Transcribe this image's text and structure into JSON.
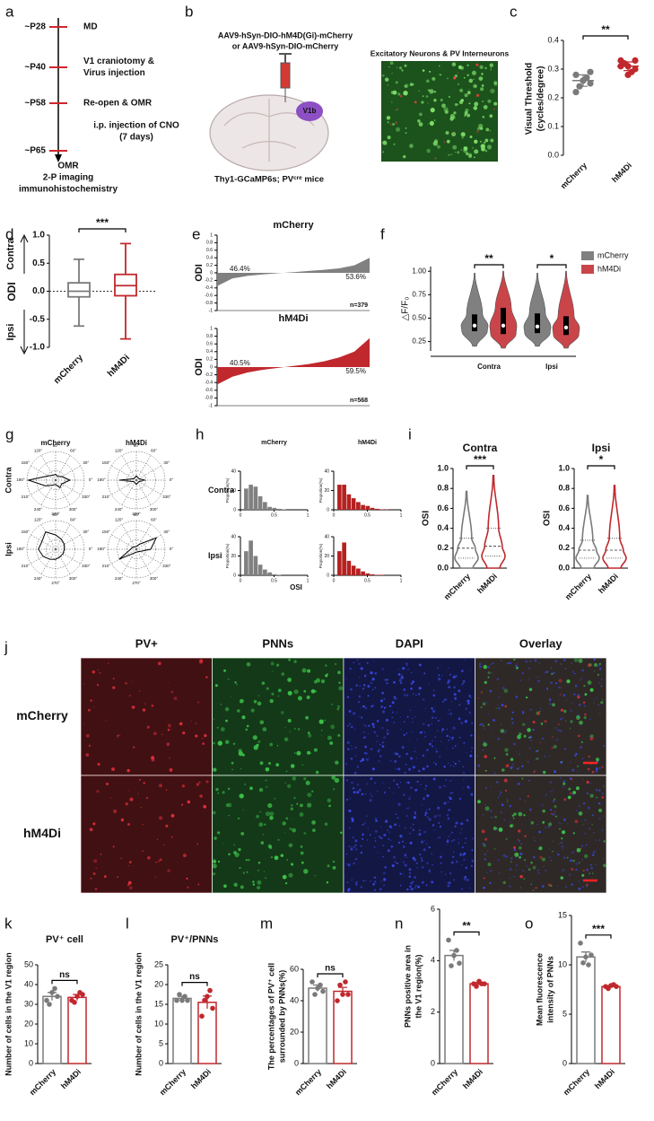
{
  "chart_data": [
    {
      "type": "timeline",
      "letter": "a",
      "stages": [
        {
          "age": "~P28",
          "events": [
            "MD"
          ]
        },
        {
          "age": "~P40",
          "events": [
            "V1 craniotomy &",
            "Virus injection"
          ]
        },
        {
          "age": "~P58",
          "events": [
            "Re-open & OMR"
          ]
        },
        {
          "age": "~P65",
          "events": []
        }
      ],
      "notes": [
        "i.p. injection of CNO",
        "(7 days)"
      ],
      "end": [
        "OMR",
        "2-P imaging",
        "immunohistochemistry"
      ]
    },
    {
      "type": "schematic",
      "letter": "b",
      "virus": [
        "AAV9-hSyn-DIO-hM4D(Gi)-mCherry",
        "or AAV9-hSyn-DIO-mCherry"
      ],
      "region": "V1b",
      "mice": "Thy1-GCaMP6s; PVᶜʳᵉ mice",
      "image_title": "Excitatory Neurons & PV Interneurons"
    },
    {
      "type": "dot",
      "letter": "c",
      "ylabel": [
        "Visual Threshold",
        "(cycles/degree)"
      ],
      "ylim": [
        0,
        0.4
      ],
      "yticks": [
        {
          "value": 0,
          "label": "0.0"
        },
        0.1,
        0.2,
        0.3,
        0.4
      ],
      "categories": [
        "mCherry",
        "hM4Di"
      ],
      "colors": [
        "#7a7a7a",
        "#c0282d"
      ],
      "points": [
        [
          0.28,
          0.26,
          0.25,
          0.24,
          0.27,
          0.22,
          0.26,
          0.29
        ],
        [
          0.33,
          0.31,
          0.3,
          0.32,
          0.29,
          0.31,
          0.28,
          0.33
        ]
      ],
      "means": [
        0.26,
        0.31
      ],
      "errors": [
        0.02,
        0.015
      ],
      "significance": "**"
    },
    {
      "type": "box",
      "letter": "d",
      "ylabel": "ODI",
      "directions": [
        "Contra",
        "Ipsi"
      ],
      "ylim": [
        -1,
        1
      ],
      "yticks": [
        {
          "value": -1,
          "label": "-1.0"
        },
        -0.5,
        {
          "value": 0,
          "label": "0.0"
        },
        0.5,
        {
          "value": 1,
          "label": "1.0"
        }
      ],
      "categories": [
        "mCherry",
        "hM4Di"
      ],
      "colors": [
        "#7a7a7a",
        "#c0282d"
      ],
      "boxes": [
        {
          "min": -0.62,
          "q1": -0.1,
          "median": 0.0,
          "q3": 0.15,
          "max": 0.57
        },
        {
          "min": -0.85,
          "q1": -0.08,
          "median": 0.1,
          "q3": 0.3,
          "max": 0.85
        }
      ],
      "significance": "***"
    },
    {
      "type": "waterfall",
      "letter": "e",
      "ylabel": "ODI",
      "ylim": [
        -1,
        1
      ],
      "yticks": [
        1,
        0.8,
        0.6,
        0.4,
        0.2,
        0,
        -0.2,
        -0.4,
        -0.6,
        -0.8,
        -1
      ],
      "panels": [
        {
          "title": "mCherry",
          "color": "#808080",
          "values": [
            -0.35,
            -0.15,
            -0.08,
            -0.04,
            -0.01,
            0.02,
            0.05,
            0.08,
            0.12,
            0.2,
            0.4
          ],
          "share_labels": [
            "46.4%",
            "53.6%"
          ],
          "n_label": "n=379"
        },
        {
          "title": "hM4Di",
          "color": "#c0282d",
          "values": [
            -0.45,
            -0.25,
            -0.14,
            -0.07,
            -0.02,
            0.03,
            0.08,
            0.15,
            0.25,
            0.4,
            0.75
          ],
          "share_labels": [
            "40.5%",
            "59.5%"
          ],
          "n_label": "n=568"
        }
      ]
    },
    {
      "type": "violin",
      "letter": "f",
      "ylabel": "△F/F₀",
      "ylim": [
        0.15,
        1.05
      ],
      "yticks": [
        0.25,
        {
          "value": 0.5,
          "label": "0.50"
        },
        0.75,
        {
          "value": 1,
          "label": "1.00"
        }
      ],
      "categories": [
        "Contra",
        "Ipsi"
      ],
      "legend": "right",
      "series": [
        {
          "name": "mCherry",
          "color": "#808080",
          "stats": [
            {
              "min": 0.2,
              "q1": 0.36,
              "median": 0.42,
              "q3": 0.54,
              "max": 0.98
            },
            {
              "min": 0.2,
              "q1": 0.34,
              "median": 0.41,
              "q3": 0.55,
              "max": 0.98
            }
          ]
        },
        {
          "name": "hM4Di",
          "color": "#c9454a",
          "stats": [
            {
              "min": 0.18,
              "q1": 0.33,
              "median": 0.42,
              "q3": 0.61,
              "max": 1.0
            },
            {
              "min": 0.18,
              "q1": 0.32,
              "median": 0.4,
              "q3": 0.52,
              "max": 1.0
            }
          ]
        }
      ],
      "significance": [
        "**",
        "*"
      ]
    },
    {
      "type": "polar",
      "letter": "g",
      "columns": [
        "mCherry",
        "hM4Di"
      ],
      "rows": [
        "Contra",
        "Ipsi"
      ],
      "angles": [
        {
          "value": 0,
          "label": "0°"
        },
        {
          "value": 30,
          "label": "30°"
        },
        {
          "value": 60,
          "label": "60°"
        },
        {
          "value": 90,
          "label": "90°"
        },
        {
          "value": 120,
          "label": "120°"
        },
        {
          "value": 150,
          "label": "150°"
        },
        {
          "value": 180,
          "label": "180°"
        },
        {
          "value": 210,
          "label": "210°"
        },
        {
          "value": 240,
          "label": "240°"
        },
        {
          "value": 270,
          "label": "270°"
        },
        {
          "value": 300,
          "label": "300°"
        },
        {
          "value": 330,
          "label": "330°"
        }
      ],
      "plots": [
        [
          0.5,
          0.25,
          0.15,
          0.2,
          0.2,
          0.3,
          0.95,
          0.4,
          0.2,
          0.15,
          0.3,
          0.25
        ],
        [
          0.3,
          0.1,
          0.1,
          0.15,
          0.1,
          0.1,
          0.6,
          0.1,
          0.1,
          0.15,
          0.1,
          0.1
        ],
        [
          0.3,
          0.35,
          0.4,
          0.5,
          0.7,
          0.55,
          0.6,
          0.5,
          0.4,
          0.35,
          0.3,
          0.3
        ],
        [
          0.5,
          0.8,
          0.2,
          0.1,
          0.1,
          0.15,
          0.2,
          0.7,
          0.15,
          0.1,
          0.1,
          0.15
        ]
      ]
    },
    {
      "type": "histogram",
      "letter": "h",
      "xlabel": "OSI",
      "ylabel": "Proportion(%)",
      "columns": [
        "mCherry",
        "hM4Di"
      ],
      "rows": [
        "Contra",
        "Ipsi"
      ],
      "bins": [
        0.05,
        0.12,
        0.19,
        0.26,
        0.33,
        0.4,
        0.47,
        0.54,
        0.61,
        0.68,
        0.75,
        0.82,
        0.89
      ],
      "xlim": [
        0,
        1
      ],
      "xticks": [
        0,
        0.5,
        1
      ],
      "ylim": [
        0,
        40
      ],
      "yticks": [
        0,
        20,
        40
      ],
      "plots": [
        {
          "color": "#808080",
          "counts": [
            22,
            26,
            24,
            14,
            8,
            3,
            2,
            1,
            0.5,
            0,
            0,
            0
          ]
        },
        {
          "color": "#b5201f",
          "counts": [
            26,
            26,
            16,
            12,
            8,
            5,
            4,
            2,
            1,
            0.5,
            0.5,
            0
          ]
        },
        {
          "color": "#808080",
          "counts": [
            25,
            36,
            20,
            11,
            6,
            3,
            1,
            0.5,
            0,
            0,
            0,
            0
          ]
        },
        {
          "color": "#b5201f",
          "counts": [
            25,
            34,
            15,
            10,
            7,
            4,
            2,
            1,
            0.5,
            0.5,
            0,
            0
          ]
        }
      ]
    },
    {
      "type": "violin_outline",
      "letter": "i",
      "ylabel": "OSI",
      "ylim": [
        0,
        1
      ],
      "yticks": [
        {
          "value": 0,
          "label": "0.0"
        },
        0.2,
        0.4,
        0.6,
        0.8,
        {
          "value": 1,
          "label": "1.0"
        }
      ],
      "categories": [
        "mCherry",
        "hM4Di"
      ],
      "colors": [
        "#7a7a7a",
        "#c0282d"
      ],
      "panels": [
        {
          "title": "Contra",
          "significance": "***",
          "stats": [
            {
              "min": 0,
              "q1": 0.1,
              "median": 0.2,
              "q3": 0.3,
              "max": 0.77
            },
            {
              "min": 0,
              "q1": 0.12,
              "median": 0.22,
              "q3": 0.4,
              "max": 0.93
            }
          ]
        },
        {
          "title": "Ipsi",
          "significance": "*",
          "stats": [
            {
              "min": 0,
              "q1": 0.1,
              "median": 0.18,
              "q3": 0.28,
              "max": 0.73
            },
            {
              "min": 0,
              "q1": 0.1,
              "median": 0.18,
              "q3": 0.3,
              "max": 0.83
            }
          ]
        }
      ]
    },
    {
      "type": "image_grid",
      "letter": "j",
      "columns": [
        "PV+",
        "PNNs",
        "DAPI",
        "Overlay"
      ],
      "rows": [
        "mCherry",
        "hM4Di"
      ],
      "colors": [
        "#e0303a",
        "#3cc24a",
        "#3a48e8",
        "#9a8a80"
      ]
    },
    {
      "type": "bar",
      "letter": "k",
      "title": "PV⁺ cell",
      "ylabel": [
        "Number of cells in the V1 region"
      ],
      "ylim": [
        0,
        50
      ],
      "yticks": [
        0,
        10,
        20,
        30,
        40,
        50
      ],
      "categories": [
        "mCherry",
        "hM4Di"
      ],
      "colors": [
        "#7a7a7a",
        "#c0282d"
      ],
      "means": [
        34,
        33.5
      ],
      "errors": [
        2,
        1.5
      ],
      "points": [
        [
          32,
          30,
          36,
          38,
          34
        ],
        [
          32,
          31,
          34,
          36,
          35
        ]
      ],
      "significance": "ns"
    },
    {
      "type": "bar",
      "letter": "l",
      "title": "PV⁺/PNNs",
      "ylabel": [
        "Number of cells in the V1 region"
      ],
      "ylim": [
        0,
        25
      ],
      "yticks": [
        0,
        5,
        10,
        15,
        20,
        25
      ],
      "categories": [
        "mCherry",
        "hM4Di"
      ],
      "colors": [
        "#7a7a7a",
        "#c0282d"
      ],
      "means": [
        16.5,
        15.5
      ],
      "errors": [
        0.5,
        1.6
      ],
      "points": [
        [
          16,
          17.5,
          16,
          17,
          16
        ],
        [
          12,
          16,
          17,
          18.5,
          14
        ]
      ],
      "significance": "ns"
    },
    {
      "type": "bar",
      "letter": "m",
      "ylabel": [
        "The percentages of PV⁺ cell",
        "surrounded by PNNs(%)"
      ],
      "ylim": [
        0,
        60
      ],
      "yticks": [
        0,
        20,
        40,
        60
      ],
      "categories": [
        "mCherry",
        "hM4Di"
      ],
      "colors": [
        "#7a7a7a",
        "#c0282d"
      ],
      "means": [
        48,
        46
      ],
      "errors": [
        2,
        2.5
      ],
      "points": [
        [
          52,
          44,
          48,
          50,
          46
        ],
        [
          40,
          50,
          44,
          52,
          44
        ]
      ],
      "significance": "ns"
    },
    {
      "type": "bar",
      "letter": "n",
      "ylabel": [
        "PNNs positive area in",
        "the V1 region(%)"
      ],
      "ylim": [
        0,
        6
      ],
      "yticks": [
        0,
        2,
        4,
        6
      ],
      "categories": [
        "mCherry",
        "hM4Di"
      ],
      "colors": [
        "#7a7a7a",
        "#c0282d"
      ],
      "means": [
        4.2,
        3.1
      ],
      "errors": [
        0.2,
        0.05
      ],
      "points": [
        [
          4.8,
          3.8,
          4.2,
          4.4,
          3.9
        ],
        [
          3.1,
          3.0,
          3.2,
          3.1,
          3.1
        ]
      ],
      "significance": "**"
    },
    {
      "type": "bar",
      "letter": "o",
      "ylabel": [
        "Mean fluorescence",
        "intensity of PNNs"
      ],
      "ylim": [
        0,
        15
      ],
      "yticks": [
        0,
        5,
        10,
        15
      ],
      "categories": [
        "mCherry",
        "hM4Di"
      ],
      "colors": [
        "#7a7a7a",
        "#c0282d"
      ],
      "means": [
        10.8,
        7.8
      ],
      "errors": [
        0.5,
        0.1
      ],
      "points": [
        [
          12.2,
          10.2,
          10.8,
          10,
          11
        ],
        [
          7.8,
          7.6,
          7.9,
          8,
          7.8
        ]
      ],
      "significance": "***"
    }
  ]
}
